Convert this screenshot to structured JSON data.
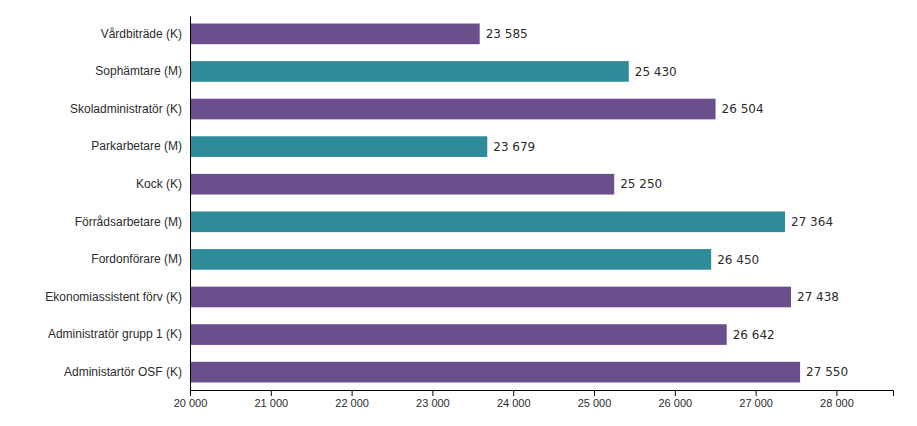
{
  "chart_data": {
    "type": "bar",
    "orientation": "horizontal",
    "categories": [
      "Administartör OSF (K)",
      "Administratör grupp 1 (K)",
      "Ekonomiassistent förv (K)",
      "Fordonförare (M)",
      "Förrådsarbetare (M)",
      "Kock (K)",
      "Parkarbetare (M)",
      "Skoladministratör (K)",
      "Sophämtare (M)",
      "Vårdbiträde (K)"
    ],
    "values": [
      27550,
      26642,
      27438,
      26450,
      27364,
      25250,
      23679,
      26504,
      25430,
      23585
    ],
    "value_labels": [
      "27 550",
      "26 642",
      "27 438",
      "26 450",
      "27 364",
      "25 250",
      "23 679",
      "26 504",
      "25 430",
      "23 585"
    ],
    "colors": [
      "#6b4f8c",
      "#6b4f8c",
      "#6b4f8c",
      "#2e8b9a",
      "#2e8b9a",
      "#6b4f8c",
      "#2e8b9a",
      "#6b4f8c",
      "#2e8b9a",
      "#6b4f8c"
    ],
    "xlim": [
      20000,
      28700
    ],
    "xticks": [
      {
        "value": 20000,
        "label": "20 000"
      },
      {
        "value": 21000,
        "label": "21 000"
      },
      {
        "value": 22000,
        "label": "22 000"
      },
      {
        "value": 23000,
        "label": "23 000"
      },
      {
        "value": 24000,
        "label": "24 000"
      },
      {
        "value": 25000,
        "label": "25 000"
      },
      {
        "value": 26000,
        "label": "26 000"
      },
      {
        "value": 27000,
        "label": "27 000"
      },
      {
        "value": 28000,
        "label": "28 000"
      }
    ],
    "data_labels": true,
    "grid": false
  }
}
